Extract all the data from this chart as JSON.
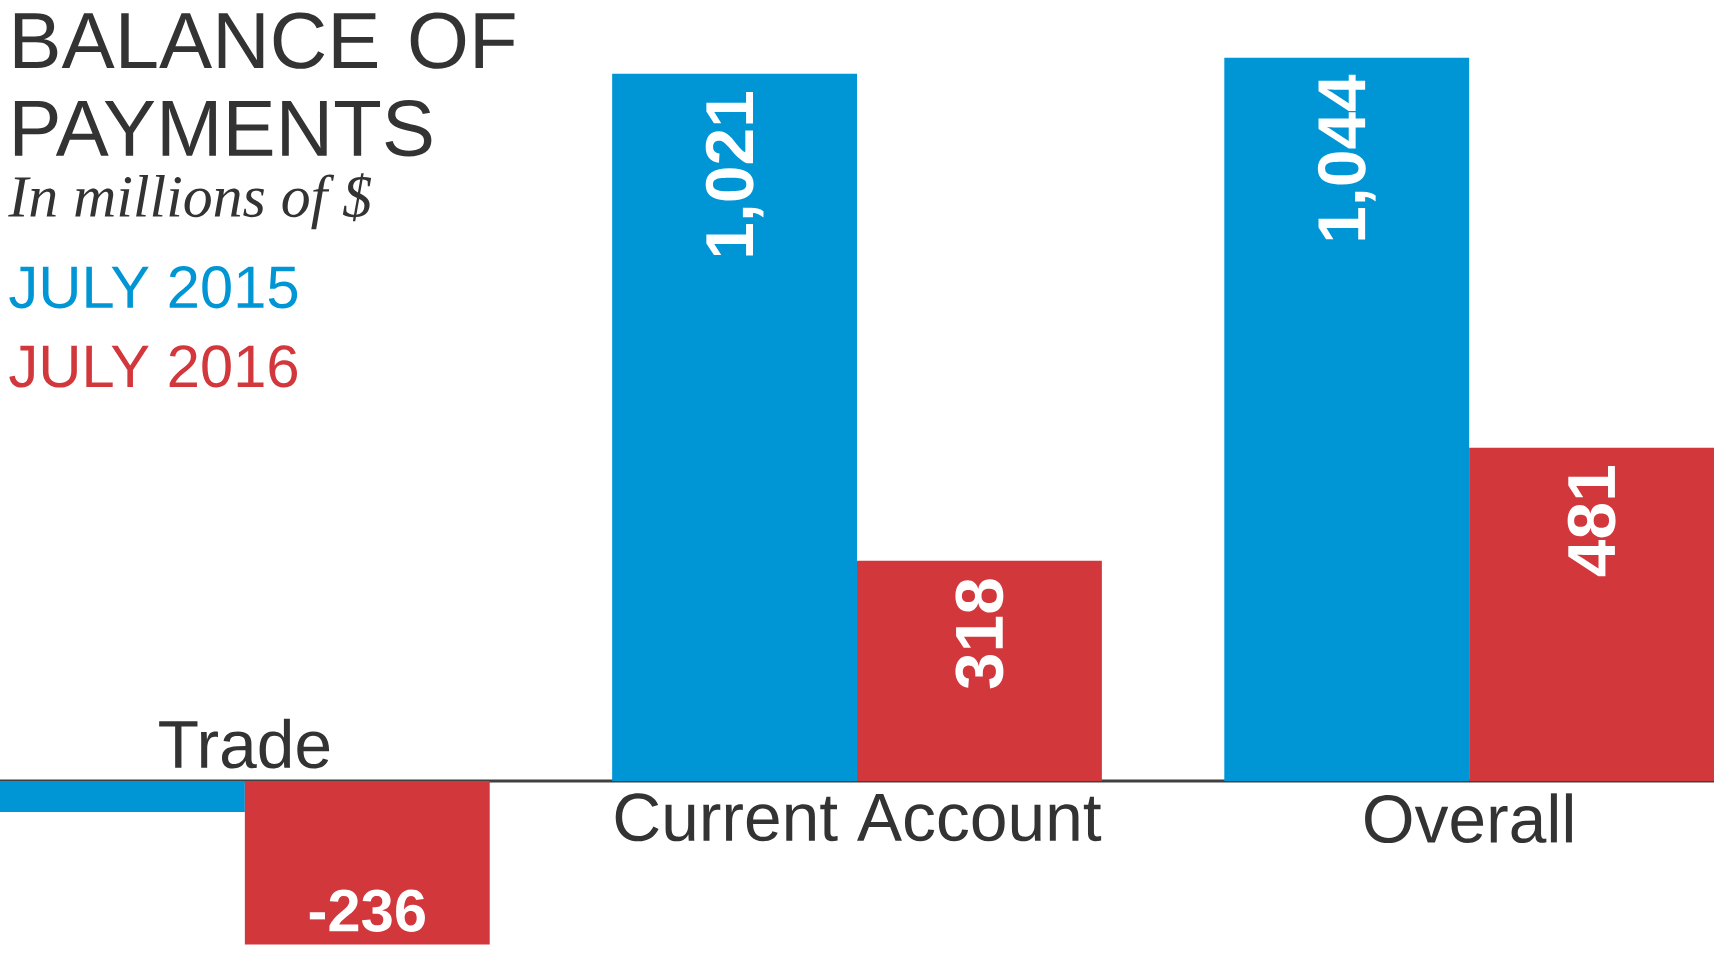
{
  "chart_data": {
    "type": "bar",
    "title": "BALANCE OF PAYMENTS",
    "subtitle": "In millions of $",
    "categories": [
      "Trade",
      "Current Account",
      "Overall"
    ],
    "series": [
      {
        "name": "JULY 2015",
        "color": "#0096d6",
        "values": [
          -45,
          1021,
          1044
        ],
        "value_labels": [
          null,
          "1,021",
          "1,044"
        ]
      },
      {
        "name": "JULY 2016",
        "color": "#d2373c",
        "values": [
          -236,
          318,
          481
        ],
        "value_labels": [
          "-236",
          "318",
          "481"
        ]
      }
    ],
    "legend": "left"
  }
}
